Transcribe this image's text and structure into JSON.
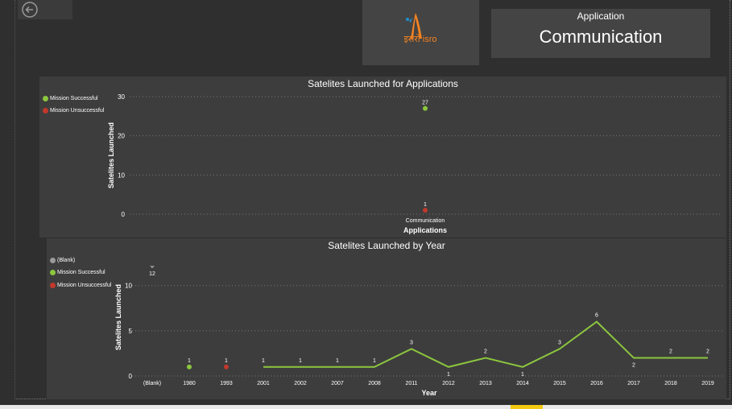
{
  "application": {
    "label": "Application",
    "value": "Communication"
  },
  "logo": {
    "icon": "isro-logo-icon",
    "text": "इसरो isro"
  },
  "colors": {
    "successful": "#8cc63e",
    "unsuccessful": "#c0392b",
    "blank": "#9a9a9a",
    "line": "#8cc63e"
  },
  "chart_data": [
    {
      "type": "scatter",
      "title": "Satelites Launched for Applications",
      "xlabel": "Applications",
      "ylabel": "Satelites Launched",
      "ylim": [
        0,
        30
      ],
      "yticks": [
        0,
        10,
        20,
        30
      ],
      "categories": [
        "Communication"
      ],
      "legend": [
        "Mission Successful",
        "Mission Unsuccessful"
      ],
      "legend_position": "top-left",
      "grid": true,
      "series": [
        {
          "name": "Mission Successful",
          "values": [
            27
          ]
        },
        {
          "name": "Mission Unsuccessful",
          "values": [
            1
          ]
        }
      ]
    },
    {
      "type": "line",
      "title": "Satelites Launched by Year",
      "xlabel": "Year",
      "ylabel": "Satelites Launched",
      "ylim": [
        0,
        13
      ],
      "yticks": [
        0,
        5,
        10
      ],
      "categories": [
        "(Blank)",
        "1980",
        "1993",
        "2001",
        "2002",
        "2007",
        "2008",
        "2011",
        "2012",
        "2013",
        "2014",
        "2015",
        "2016",
        "2017",
        "2018",
        "2019"
      ],
      "legend": [
        "(Blank)",
        "Mission Successful",
        "Mission Unsuccessful"
      ],
      "legend_position": "top-left",
      "grid": true,
      "series": [
        {
          "name": "(Blank)",
          "points": [
            {
              "x": "(Blank)",
              "y": 12
            }
          ]
        },
        {
          "name": "Mission Successful",
          "points": [
            {
              "x": "1980",
              "y": 1
            },
            {
              "x": "2001",
              "y": 1
            },
            {
              "x": "2002",
              "y": 1
            },
            {
              "x": "2007",
              "y": 1
            },
            {
              "x": "2008",
              "y": 1
            },
            {
              "x": "2011",
              "y": 3
            },
            {
              "x": "2012",
              "y": 1
            },
            {
              "x": "2013",
              "y": 2
            },
            {
              "x": "2014",
              "y": 1
            },
            {
              "x": "2015",
              "y": 3
            },
            {
              "x": "2016",
              "y": 6
            },
            {
              "x": "2017",
              "y": 2
            },
            {
              "x": "2018",
              "y": 2
            },
            {
              "x": "2019",
              "y": 2
            }
          ]
        },
        {
          "name": "Mission Unsuccessful",
          "points": [
            {
              "x": "1993",
              "y": 1
            }
          ]
        }
      ]
    }
  ]
}
